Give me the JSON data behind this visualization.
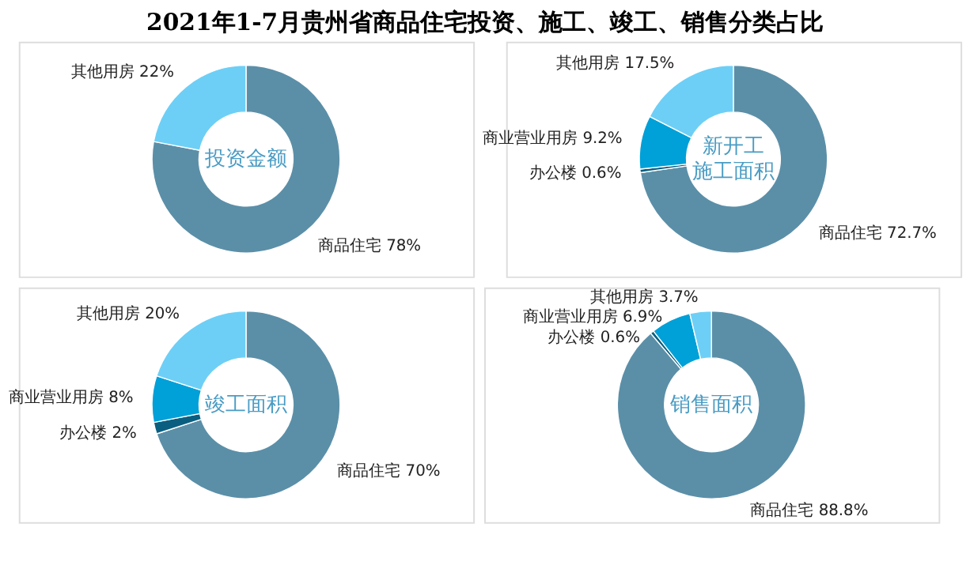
{
  "chart_data": [
    {
      "type": "donut",
      "title": "2021年1-7月贵州省商品住宅投资、施工、竣工、销售分类占比",
      "annotations": [
        "投资金额"
      ],
      "categories": [
        "商品住宅",
        "其他用房"
      ],
      "values": [
        78,
        22
      ],
      "value_labels": [
        "78%",
        "22%"
      ],
      "colors": [
        "#5b8fa8",
        "#6dcff6"
      ]
    },
    {
      "type": "donut",
      "annotations": [
        "新开工",
        "施工面积"
      ],
      "categories": [
        "商品住宅",
        "办公楼",
        "商业营业用房",
        "其他用房"
      ],
      "values": [
        72.7,
        0.6,
        9.2,
        17.5
      ],
      "value_labels": [
        "72.7%",
        "0.6%",
        "9.2%",
        "17.5%"
      ],
      "colors": [
        "#5b8fa8",
        "#0a5f80",
        "#00a0d8",
        "#6dcff6"
      ]
    },
    {
      "type": "donut",
      "annotations": [
        "竣工面积"
      ],
      "categories": [
        "商品住宅",
        "办公楼",
        "商业营业用房",
        "其他用房"
      ],
      "values": [
        70,
        2,
        8,
        20
      ],
      "value_labels": [
        "70%",
        "2%",
        "8%",
        "20%"
      ],
      "colors": [
        "#5b8fa8",
        "#0a5f80",
        "#00a0d8",
        "#6dcff6"
      ]
    },
    {
      "type": "donut",
      "annotations": [
        "销售面积"
      ],
      "categories": [
        "商品住宅",
        "办公楼",
        "商业营业用房",
        "其他用房"
      ],
      "values": [
        88.8,
        0.6,
        6.9,
        3.7
      ],
      "value_labels": [
        "88.8%",
        "0.6%",
        "6.9%",
        "3.7%"
      ],
      "colors": [
        "#5b8fa8",
        "#0a5f80",
        "#00a0d8",
        "#6dcff6"
      ]
    }
  ]
}
